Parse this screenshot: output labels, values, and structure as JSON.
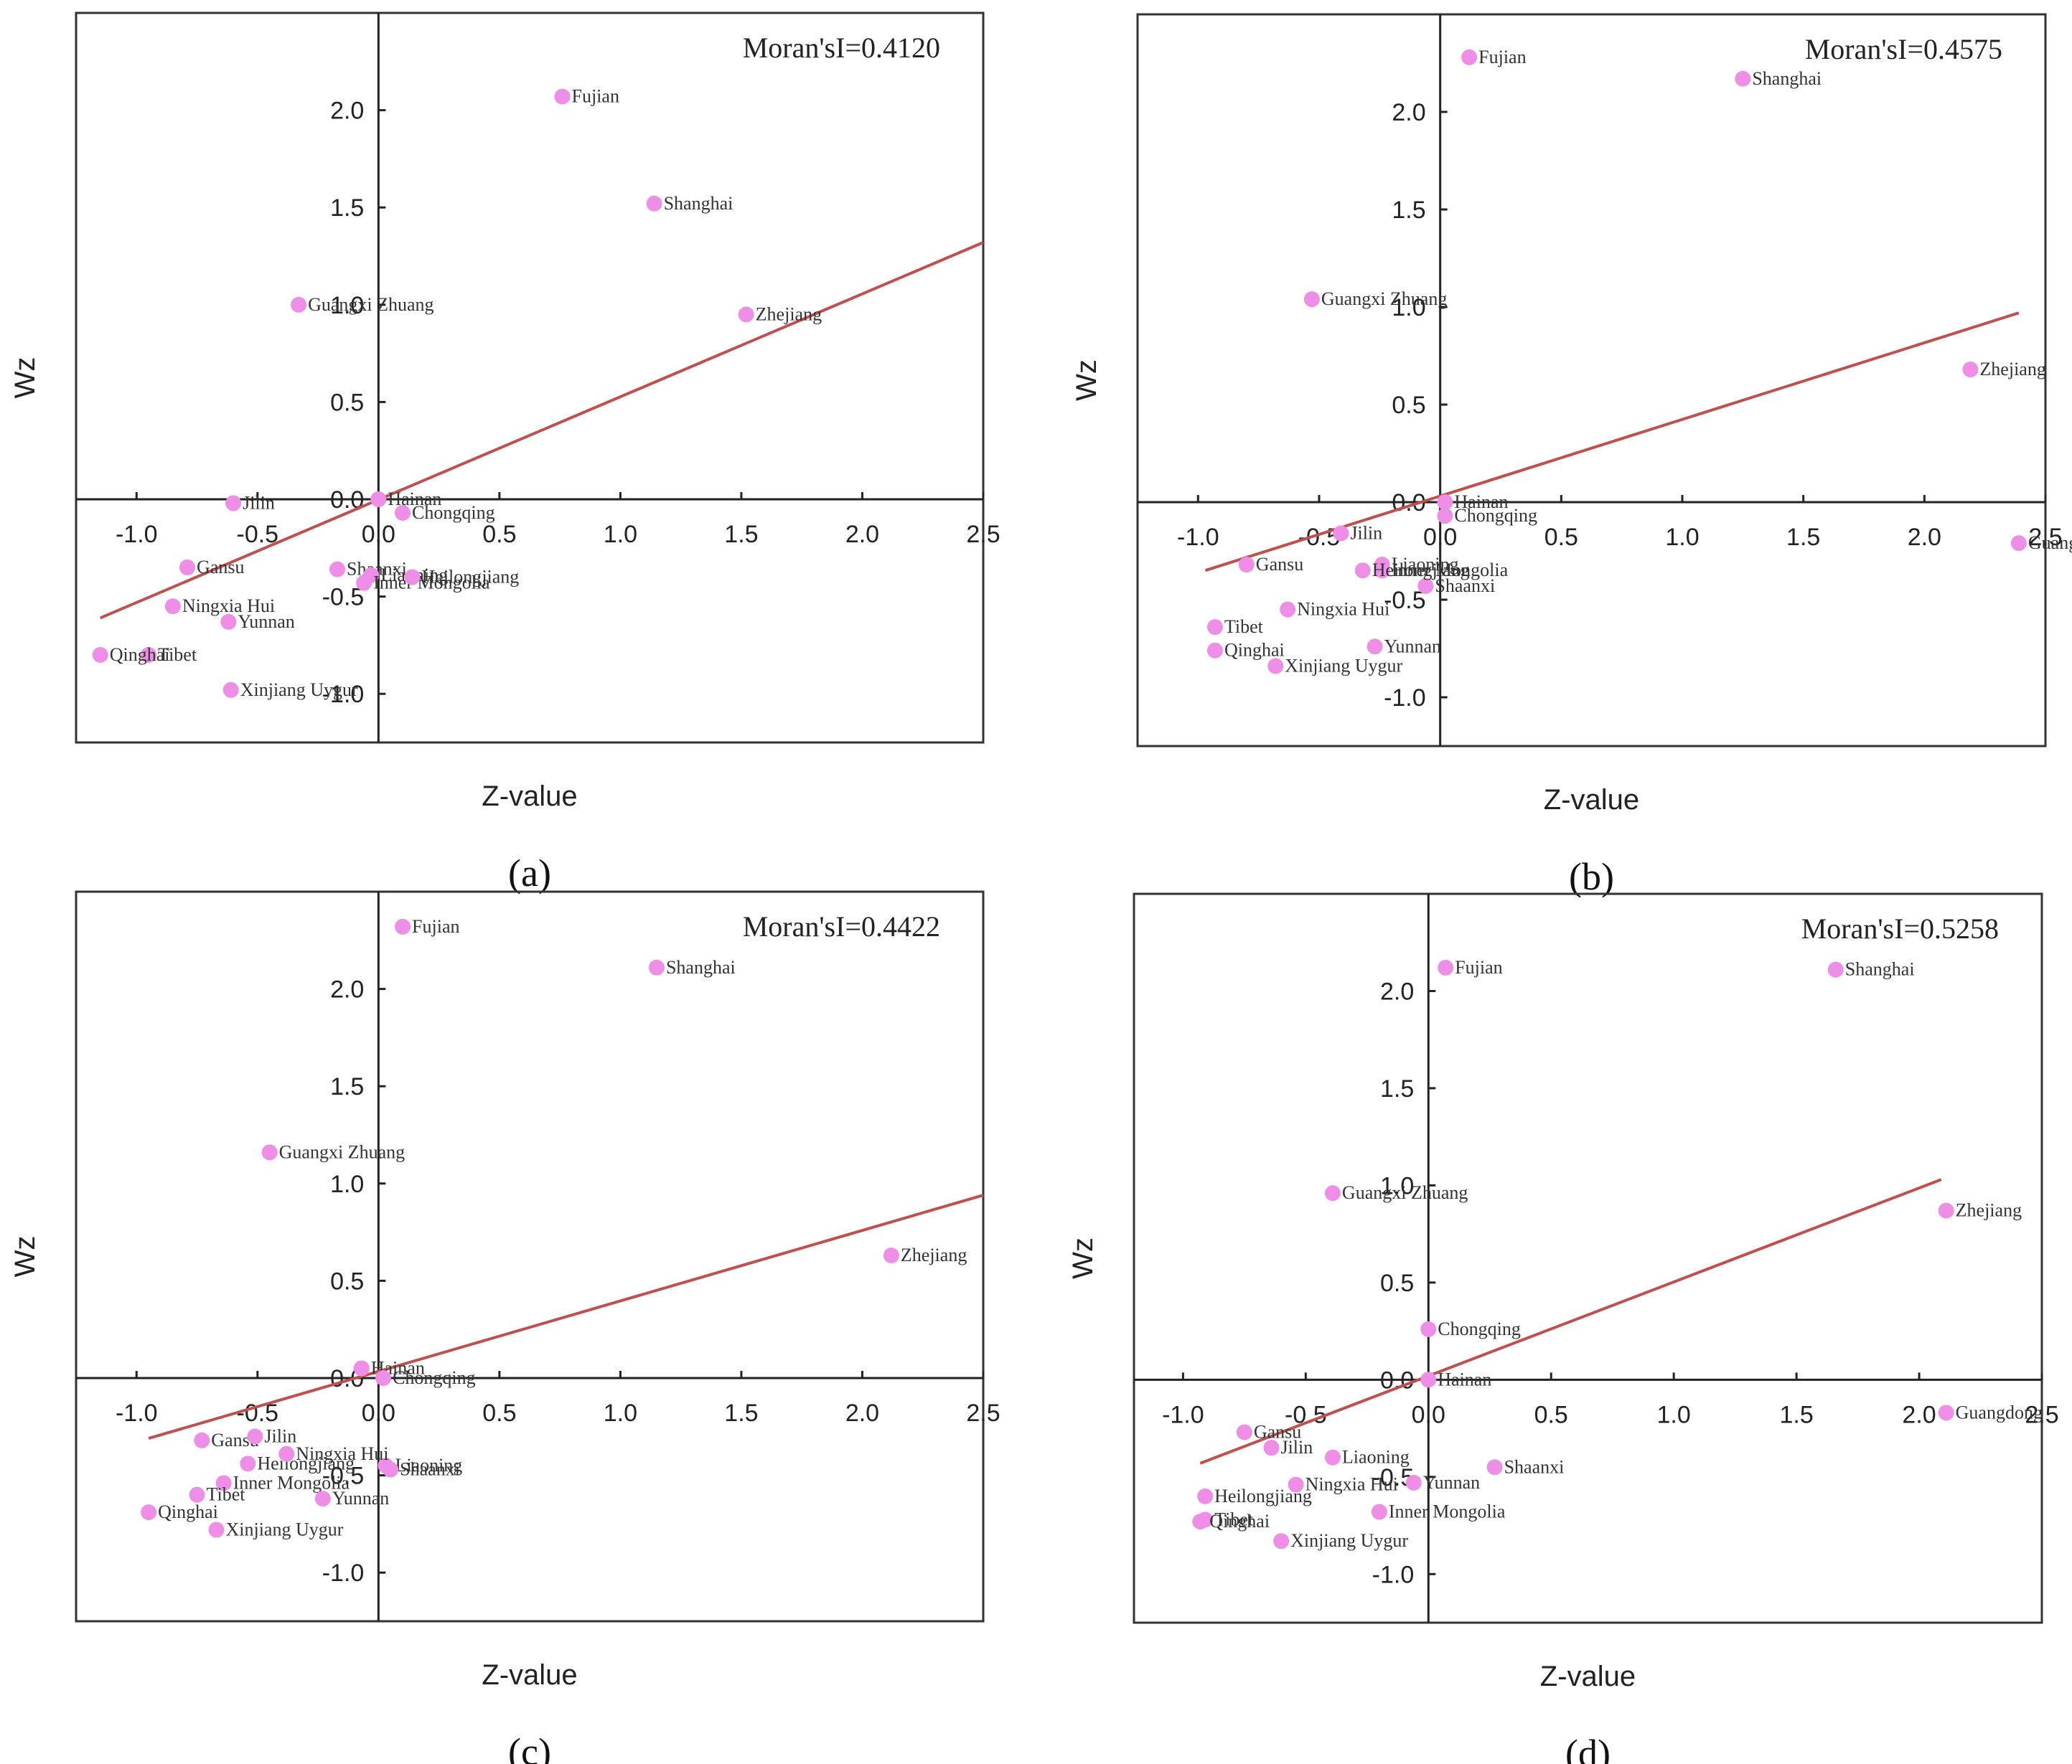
{
  "chart_data": [
    {
      "type": "scatter",
      "panel_label": "(a)",
      "moran_text": "Moran'sI=0.4120",
      "xlabel": "Z-value",
      "ylabel": "Wz",
      "xlim": [
        -1.25,
        2.5
      ],
      "ylim": [
        -1.25,
        2.5
      ],
      "x_ticks": [
        -1.0,
        -0.5,
        0.0,
        0.5,
        1.0,
        1.5,
        2.0,
        2.5
      ],
      "x_tick_labels": [
        "-1.0",
        "-0.5",
        "0.0",
        "0.5",
        "1.0",
        "1.5",
        "2.0",
        "2.5"
      ],
      "y_ticks": [
        -1.0,
        -0.5,
        0.0,
        0.5,
        1.0,
        1.5,
        2.0
      ],
      "y_tick_labels": [
        "-1.0",
        "-0.5",
        "0.0",
        "0.5",
        "1.0",
        "1.5",
        "2.0"
      ],
      "trend_line": {
        "x": [
          -1.15,
          2.5
        ],
        "y": [
          -0.61,
          1.32
        ]
      },
      "points": [
        {
          "name": "Fujian",
          "x": 0.76,
          "y": 2.07
        },
        {
          "name": "Shanghai",
          "x": 1.14,
          "y": 1.52
        },
        {
          "name": "Zhejiang",
          "x": 1.52,
          "y": 0.95
        },
        {
          "name": "Guangxi Zhuang",
          "x": -0.33,
          "y": 1.0
        },
        {
          "name": "Jilin",
          "x": -0.6,
          "y": -0.02
        },
        {
          "name": "Hainan",
          "x": 0.0,
          "y": 0.0
        },
        {
          "name": "Chongqing",
          "x": 0.1,
          "y": -0.07
        },
        {
          "name": "Shaanxi",
          "x": -0.17,
          "y": -0.36
        },
        {
          "name": "Liaoning",
          "x": -0.03,
          "y": -0.39
        },
        {
          "name": "Inner Mongolia",
          "x": -0.06,
          "y": -0.43
        },
        {
          "name": "Heilongjiang",
          "x": 0.14,
          "y": -0.4
        },
        {
          "name": "Gansu",
          "x": -0.79,
          "y": -0.35
        },
        {
          "name": "Ningxia Hui",
          "x": -0.85,
          "y": -0.55
        },
        {
          "name": "Yunnan",
          "x": -0.62,
          "y": -0.63
        },
        {
          "name": "Tibet",
          "x": -0.95,
          "y": -0.8
        },
        {
          "name": "Qinghai",
          "x": -1.15,
          "y": -0.8
        },
        {
          "name": "Xinjiang Uygur",
          "x": -0.61,
          "y": -0.98
        }
      ]
    },
    {
      "type": "scatter",
      "panel_label": "(b)",
      "moran_text": "Moran'sI=0.4575",
      "xlabel": "Z-value",
      "ylabel": "Wz",
      "xlim": [
        -1.25,
        2.5
      ],
      "ylim": [
        -1.25,
        2.5
      ],
      "x_ticks": [
        -1.0,
        -0.5,
        0.0,
        0.5,
        1.0,
        1.5,
        2.0,
        2.5
      ],
      "x_tick_labels": [
        "-1.0",
        "-0.5",
        "0.0",
        "0.5",
        "1.0",
        "1.5",
        "2.0",
        "2.5"
      ],
      "y_ticks": [
        -1.0,
        -0.5,
        0.0,
        0.5,
        1.0,
        1.5,
        2.0
      ],
      "y_tick_labels": [
        "-1.0",
        "-0.5",
        "0.0",
        "0.5",
        "1.0",
        "1.5",
        "2.0"
      ],
      "trend_line": {
        "x": [
          -0.97,
          2.39
        ],
        "y": [
          -0.35,
          0.97
        ]
      },
      "points": [
        {
          "name": "Fujian",
          "x": 0.12,
          "y": 2.28
        },
        {
          "name": "Shanghai",
          "x": 1.25,
          "y": 2.17
        },
        {
          "name": "Guangxi Zhuang",
          "x": -0.53,
          "y": 1.04
        },
        {
          "name": "Zhejiang",
          "x": 2.19,
          "y": 0.68
        },
        {
          "name": "Hainan",
          "x": 0.02,
          "y": 0.0
        },
        {
          "name": "Chongqing",
          "x": 0.02,
          "y": -0.07
        },
        {
          "name": "Jilin",
          "x": -0.41,
          "y": -0.16
        },
        {
          "name": "Inner Mongolia",
          "x": -0.24,
          "y": -0.35
        },
        {
          "name": "Liaoning",
          "x": -0.24,
          "y": -0.32
        },
        {
          "name": "Shaanxi",
          "x": -0.06,
          "y": -0.43
        },
        {
          "name": "Gansu",
          "x": -0.8,
          "y": -0.32
        },
        {
          "name": "Heilongjiang",
          "x": -0.32,
          "y": -0.35
        },
        {
          "name": "Ningxia Hui",
          "x": -0.63,
          "y": -0.55
        },
        {
          "name": "Guangdong",
          "x": 2.39,
          "y": -0.21
        },
        {
          "name": "Tibet",
          "x": -0.93,
          "y": -0.64
        },
        {
          "name": "Qinghai",
          "x": -0.93,
          "y": -0.76
        },
        {
          "name": "Xinjiang Uygur",
          "x": -0.68,
          "y": -0.84
        },
        {
          "name": "Yunnan",
          "x": -0.27,
          "y": -0.74
        }
      ]
    },
    {
      "type": "scatter",
      "panel_label": "(c)",
      "moran_text": "Moran'sI=0.4422",
      "xlabel": "Z-value",
      "ylabel": "Wz",
      "xlim": [
        -1.25,
        2.5
      ],
      "ylim": [
        -1.25,
        2.5
      ],
      "x_ticks": [
        -1.0,
        -0.5,
        0.0,
        0.5,
        1.0,
        1.5,
        2.0,
        2.5
      ],
      "x_tick_labels": [
        "-1.0",
        "-0.5",
        "0.0",
        "0.5",
        "1.0",
        "1.5",
        "2.0",
        "2.5"
      ],
      "y_ticks": [
        -1.0,
        -0.5,
        0.0,
        0.5,
        1.0,
        1.5,
        2.0
      ],
      "y_tick_labels": [
        "-1.0",
        "-0.5",
        "0.0",
        "0.5",
        "1.0",
        "1.5",
        "2.0"
      ],
      "trend_line": {
        "x": [
          -0.95,
          2.5
        ],
        "y": [
          -0.31,
          0.94
        ]
      },
      "points": [
        {
          "name": "Fujian",
          "x": 0.1,
          "y": 2.32
        },
        {
          "name": "Shanghai",
          "x": 1.15,
          "y": 2.11
        },
        {
          "name": "Guangxi Zhuang",
          "x": -0.45,
          "y": 1.16
        },
        {
          "name": "Zhejiang",
          "x": 2.12,
          "y": 0.63
        },
        {
          "name": "Hainan",
          "x": -0.07,
          "y": 0.05
        },
        {
          "name": "Chongqing",
          "x": 0.02,
          "y": 0.0
        },
        {
          "name": "Gansu",
          "x": -0.73,
          "y": -0.32
        },
        {
          "name": "Jilin",
          "x": -0.51,
          "y": -0.3
        },
        {
          "name": "Liaoning",
          "x": 0.03,
          "y": -0.45
        },
        {
          "name": "Shaanxi",
          "x": 0.05,
          "y": -0.47
        },
        {
          "name": "Heilongjiang",
          "x": -0.54,
          "y": -0.44
        },
        {
          "name": "Ningxia Hui",
          "x": -0.38,
          "y": -0.39
        },
        {
          "name": "Inner Mongolia",
          "x": -0.64,
          "y": -0.54
        },
        {
          "name": "Yunnan",
          "x": -0.23,
          "y": -0.62
        },
        {
          "name": "Tibet",
          "x": -0.75,
          "y": -0.6
        },
        {
          "name": "Qinghai",
          "x": -0.95,
          "y": -0.69
        },
        {
          "name": "Xinjiang Uygur",
          "x": -0.67,
          "y": -0.78
        }
      ]
    },
    {
      "type": "scatter",
      "panel_label": "(d)",
      "moran_text": "Moran'sI=0.5258",
      "xlabel": "Z-value",
      "ylabel": "Wz",
      "xlim": [
        -1.2,
        2.5
      ],
      "ylim": [
        -1.25,
        2.5
      ],
      "x_ticks": [
        -1.0,
        -0.5,
        0.0,
        0.5,
        1.0,
        1.5,
        2.0,
        2.5
      ],
      "x_tick_labels": [
        "-1.0",
        "-0.5",
        "0.0",
        "0.5",
        "1.0",
        "1.5",
        "2.0",
        "2.5"
      ],
      "y_ticks": [
        -1.0,
        -0.5,
        0.0,
        0.5,
        1.0,
        1.5,
        2.0
      ],
      "y_tick_labels": [
        "-1.0",
        "-0.5",
        "0.0",
        "0.5",
        "1.0",
        "1.5",
        "2.0"
      ],
      "trend_line": {
        "x": [
          -0.93,
          2.09
        ],
        "y": [
          -0.43,
          1.03
        ]
      },
      "points": [
        {
          "name": "Fujian",
          "x": 0.07,
          "y": 2.12
        },
        {
          "name": "Shanghai",
          "x": 1.66,
          "y": 2.11
        },
        {
          "name": "Guangxi Zhuang",
          "x": -0.39,
          "y": 0.96
        },
        {
          "name": "Zhejiang",
          "x": 2.11,
          "y": 0.87
        },
        {
          "name": "Chongqing",
          "x": 0.0,
          "y": 0.26
        },
        {
          "name": "Hainan",
          "x": 0.0,
          "y": 0.0
        },
        {
          "name": "Gansu",
          "x": -0.75,
          "y": -0.27
        },
        {
          "name": "Jilin",
          "x": -0.64,
          "y": -0.35
        },
        {
          "name": "Liaoning",
          "x": -0.39,
          "y": -0.4
        },
        {
          "name": "Ningxia Hui",
          "x": -0.54,
          "y": -0.54
        },
        {
          "name": "Heilongjiang",
          "x": -0.91,
          "y": -0.6
        },
        {
          "name": "Inner Mongolia",
          "x": -0.2,
          "y": -0.68
        },
        {
          "name": "Yunnan",
          "x": -0.06,
          "y": -0.53
        },
        {
          "name": "Shaanxi",
          "x": 0.27,
          "y": -0.45
        },
        {
          "name": "Guangdong",
          "x": 2.11,
          "y": -0.17
        },
        {
          "name": "Tibet",
          "x": -0.91,
          "y": -0.72
        },
        {
          "name": "Qinghai",
          "x": -0.93,
          "y": -0.73
        },
        {
          "name": "Xinjiang Uygur",
          "x": -0.6,
          "y": -0.83
        }
      ]
    }
  ]
}
